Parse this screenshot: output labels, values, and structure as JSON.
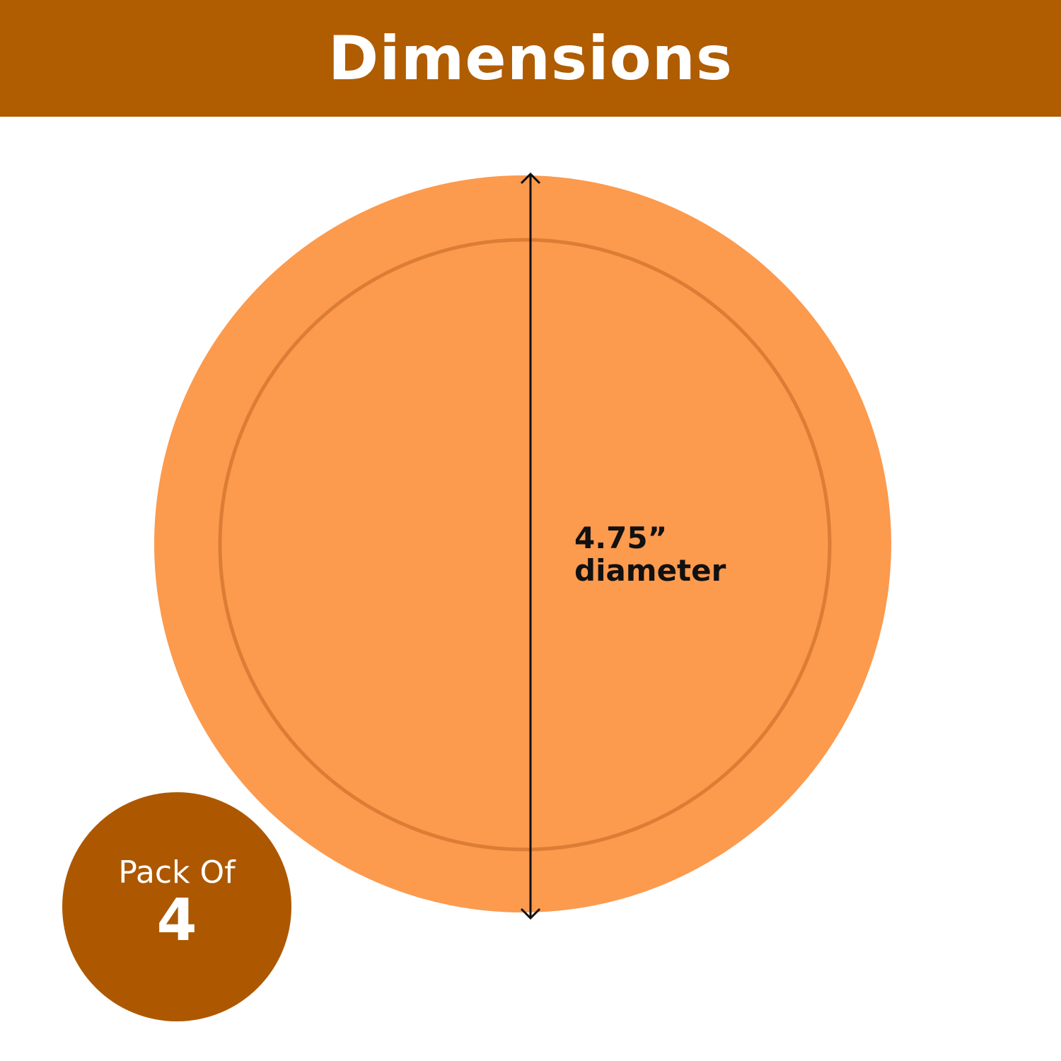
{
  "header": {
    "title": "Dimensions"
  },
  "product": {
    "color": "#FC9A4E",
    "rim_color": "#D97A30"
  },
  "measurement": {
    "value": "4.75”",
    "label": "diameter"
  },
  "badge": {
    "label": "Pack Of",
    "count": "4",
    "color": "#AD5800"
  },
  "colors": {
    "brand": "#B05C00"
  }
}
